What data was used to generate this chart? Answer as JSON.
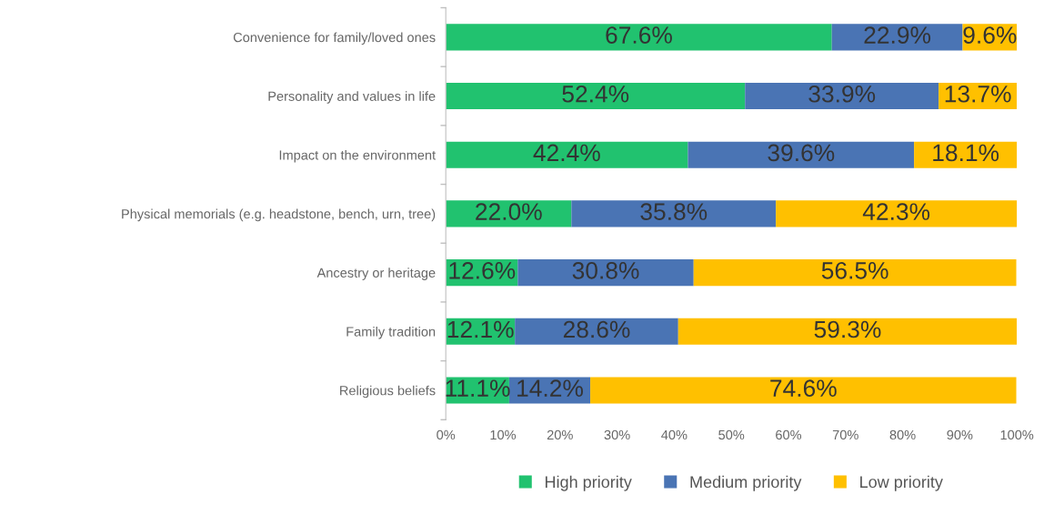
{
  "chart_data": {
    "type": "bar",
    "orientation": "horizontal",
    "stacked": true,
    "categories": [
      "Convenience for family/loved ones",
      "Personality and values in life",
      "Impact on the environment",
      "Physical memorials (e.g. headstone, bench, urn, tree)",
      "Ancestry or heritage",
      "Family tradition",
      "Religious beliefs"
    ],
    "series": [
      {
        "name": "High priority",
        "color": "#21c26f",
        "values": [
          67.6,
          52.4,
          42.4,
          22.0,
          12.6,
          12.1,
          11.1
        ],
        "value_labels": [
          "67.6%",
          "52.4%",
          "42.4%",
          "22.0%",
          "12.6%",
          "12.1%",
          "11.1%"
        ]
      },
      {
        "name": "Medium priority",
        "color": "#4a74b4",
        "values": [
          22.9,
          33.9,
          39.6,
          35.8,
          30.8,
          28.6,
          14.2
        ],
        "value_labels": [
          "22.9%",
          "33.9%",
          "39.6%",
          "35.8%",
          "30.8%",
          "28.6%",
          "14.2%"
        ]
      },
      {
        "name": "Low priority",
        "color": "#ffc000",
        "values": [
          9.6,
          13.7,
          18.1,
          42.3,
          56.5,
          59.3,
          74.6
        ],
        "value_labels": [
          "9.6%",
          "13.7%",
          "18.1%",
          "42.3%",
          "56.5%",
          "59.3%",
          "74.6%"
        ]
      }
    ],
    "xlim": [
      0,
      100
    ],
    "xticks": [
      {
        "value": 0,
        "label": "0%"
      },
      {
        "value": 10,
        "label": "10%"
      },
      {
        "value": 20,
        "label": "20%"
      },
      {
        "value": 30,
        "label": "30%"
      },
      {
        "value": 40,
        "label": "40%"
      },
      {
        "value": 50,
        "label": "50%"
      },
      {
        "value": 60,
        "label": "60%"
      },
      {
        "value": 70,
        "label": "70%"
      },
      {
        "value": 80,
        "label": "80%"
      },
      {
        "value": 90,
        "label": "90%"
      },
      {
        "value": 100,
        "label": "100%"
      }
    ],
    "grid": false,
    "legend": "bottom"
  }
}
